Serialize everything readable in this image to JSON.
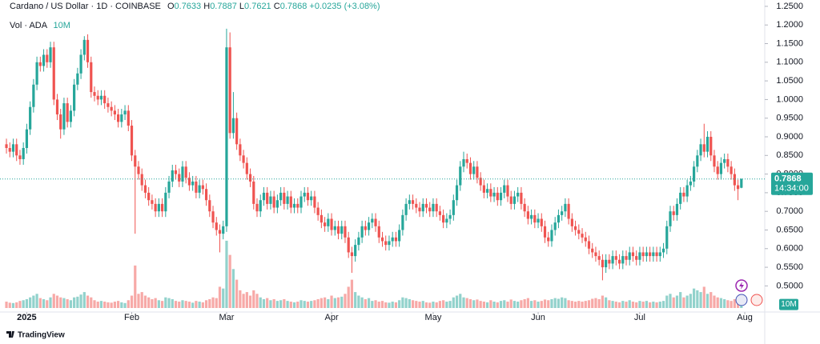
{
  "header": {
    "symbol": "Cardano / US Dollar · 1D · COINBASE",
    "ohlc_labels": [
      "O",
      "H",
      "L",
      "C"
    ],
    "change": "+0.0235",
    "change_pct": "(+3.08%)",
    "volume_title": "Vol · ADA",
    "countdown": "14:34:00",
    "branding": "TradingView"
  },
  "chart_data": {
    "type": "candlestick",
    "open": [
      0.88,
      0.87,
      0.86,
      0.88,
      0.85,
      0.84,
      0.87,
      0.92,
      0.98,
      1.04,
      1.1,
      1.09,
      1.12,
      1.1,
      1.14,
      1.0,
      0.96,
      0.92,
      0.99,
      0.94,
      0.97,
      1.04,
      1.07,
      1.12,
      1.16,
      1.1,
      1.02,
      1.01,
      1.0,
      1.01,
      0.99,
      0.98,
      0.97,
      0.96,
      0.94,
      0.96,
      0.97,
      0.93,
      0.85,
      0.82,
      0.8,
      0.77,
      0.75,
      0.73,
      0.72,
      0.7,
      0.72,
      0.7,
      0.75,
      0.78,
      0.81,
      0.8,
      0.78,
      0.82,
      0.79,
      0.77,
      0.78,
      0.75,
      0.77,
      0.76,
      0.73,
      0.7,
      0.67,
      0.65,
      0.64,
      0.66,
      1.14,
      0.91,
      0.95,
      0.88,
      0.85,
      0.83,
      0.8,
      0.78,
      0.72,
      0.7,
      0.73,
      0.75,
      0.72,
      0.74,
      0.71,
      0.73,
      0.75,
      0.72,
      0.74,
      0.71,
      0.72,
      0.71,
      0.74,
      0.75,
      0.73,
      0.74,
      0.71,
      0.69,
      0.67,
      0.66,
      0.68,
      0.65,
      0.66,
      0.64,
      0.66,
      0.63,
      0.59,
      0.58,
      0.61,
      0.63,
      0.66,
      0.65,
      0.67,
      0.68,
      0.66,
      0.63,
      0.62,
      0.61,
      0.62,
      0.63,
      0.62,
      0.65,
      0.69,
      0.72,
      0.73,
      0.72,
      0.71,
      0.7,
      0.72,
      0.71,
      0.7,
      0.72,
      0.7,
      0.69,
      0.67,
      0.68,
      0.69,
      0.73,
      0.77,
      0.82,
      0.84,
      0.83,
      0.8,
      0.82,
      0.79,
      0.77,
      0.75,
      0.76,
      0.74,
      0.75,
      0.73,
      0.75,
      0.77,
      0.74,
      0.72,
      0.74,
      0.75,
      0.72,
      0.7,
      0.68,
      0.69,
      0.67,
      0.68,
      0.66,
      0.63,
      0.62,
      0.65,
      0.67,
      0.69,
      0.7,
      0.72,
      0.68,
      0.66,
      0.65,
      0.64,
      0.63,
      0.62,
      0.6,
      0.59,
      0.58,
      0.57,
      0.55,
      0.57,
      0.56,
      0.58,
      0.57,
      0.56,
      0.58,
      0.57,
      0.59,
      0.58,
      0.57,
      0.59,
      0.58,
      0.59,
      0.58,
      0.59,
      0.58,
      0.59,
      0.6,
      0.66,
      0.7,
      0.69,
      0.72,
      0.75,
      0.74,
      0.77,
      0.78,
      0.82,
      0.85,
      0.88,
      0.86,
      0.9,
      0.85,
      0.82,
      0.8,
      0.83,
      0.84,
      0.82,
      0.8,
      0.77,
      0.7633
    ],
    "high": [
      0.895,
      0.885,
      0.895,
      0.895,
      0.865,
      0.885,
      0.935,
      0.995,
      1.055,
      1.115,
      1.115,
      1.135,
      1.135,
      1.155,
      1.155,
      1.015,
      0.975,
      1.005,
      1.005,
      0.985,
      1.055,
      1.085,
      1.135,
      1.17,
      1.175,
      1.115,
      1.035,
      1.025,
      1.025,
      1.025,
      1.005,
      0.995,
      0.985,
      0.975,
      0.975,
      0.985,
      0.985,
      0.945,
      0.865,
      0.835,
      0.815,
      0.785,
      0.765,
      0.745,
      0.735,
      0.735,
      0.735,
      0.765,
      0.795,
      0.825,
      0.825,
      0.815,
      0.835,
      0.835,
      0.805,
      0.795,
      0.795,
      0.785,
      0.785,
      0.775,
      0.745,
      0.715,
      0.685,
      0.665,
      0.675,
      1.19,
      1.18,
      1.02,
      0.965,
      0.895,
      0.865,
      0.845,
      0.815,
      0.795,
      0.735,
      0.745,
      0.765,
      0.765,
      0.755,
      0.755,
      0.745,
      0.765,
      0.765,
      0.755,
      0.755,
      0.735,
      0.735,
      0.755,
      0.765,
      0.765,
      0.755,
      0.755,
      0.725,
      0.705,
      0.685,
      0.695,
      0.695,
      0.675,
      0.675,
      0.675,
      0.675,
      0.645,
      0.605,
      0.625,
      0.645,
      0.675,
      0.675,
      0.685,
      0.695,
      0.695,
      0.675,
      0.645,
      0.635,
      0.635,
      0.645,
      0.645,
      0.665,
      0.705,
      0.735,
      0.745,
      0.745,
      0.735,
      0.725,
      0.735,
      0.735,
      0.725,
      0.735,
      0.735,
      0.715,
      0.705,
      0.695,
      0.705,
      0.745,
      0.785,
      0.835,
      0.86,
      0.855,
      0.845,
      0.835,
      0.835,
      0.805,
      0.785,
      0.775,
      0.775,
      0.765,
      0.765,
      0.765,
      0.785,
      0.785,
      0.755,
      0.755,
      0.765,
      0.765,
      0.735,
      0.715,
      0.705,
      0.705,
      0.695,
      0.695,
      0.675,
      0.645,
      0.665,
      0.685,
      0.705,
      0.715,
      0.735,
      0.735,
      0.695,
      0.675,
      0.665,
      0.655,
      0.645,
      0.635,
      0.615,
      0.605,
      0.595,
      0.585,
      0.585,
      0.585,
      0.595,
      0.595,
      0.585,
      0.595,
      0.595,
      0.605,
      0.605,
      0.595,
      0.605,
      0.605,
      0.605,
      0.605,
      0.605,
      0.605,
      0.605,
      0.615,
      0.675,
      0.715,
      0.715,
      0.735,
      0.765,
      0.765,
      0.785,
      0.795,
      0.835,
      0.865,
      0.895,
      0.935,
      0.915,
      0.915,
      0.865,
      0.835,
      0.845,
      0.855,
      0.855,
      0.835,
      0.815,
      0.785,
      0.7887
    ],
    "low": [
      0.855,
      0.845,
      0.845,
      0.835,
      0.825,
      0.825,
      0.855,
      0.905,
      0.965,
      1.025,
      1.075,
      1.075,
      1.085,
      1.085,
      0.985,
      0.945,
      0.895,
      0.905,
      0.925,
      0.925,
      0.955,
      1.025,
      1.055,
      1.105,
      1.085,
      1.005,
      0.995,
      0.985,
      0.985,
      0.975,
      0.965,
      0.955,
      0.945,
      0.925,
      0.925,
      0.945,
      0.915,
      0.835,
      0.64,
      0.785,
      0.755,
      0.735,
      0.715,
      0.705,
      0.685,
      0.685,
      0.685,
      0.685,
      0.735,
      0.765,
      0.785,
      0.765,
      0.765,
      0.775,
      0.755,
      0.755,
      0.735,
      0.735,
      0.745,
      0.715,
      0.685,
      0.655,
      0.635,
      0.59,
      0.625,
      0.645,
      0.895,
      0.895,
      0.865,
      0.835,
      0.815,
      0.785,
      0.765,
      0.705,
      0.685,
      0.685,
      0.715,
      0.705,
      0.705,
      0.695,
      0.695,
      0.715,
      0.705,
      0.705,
      0.695,
      0.695,
      0.695,
      0.695,
      0.725,
      0.715,
      0.715,
      0.695,
      0.675,
      0.655,
      0.645,
      0.645,
      0.635,
      0.635,
      0.625,
      0.625,
      0.615,
      0.575,
      0.535,
      0.565,
      0.595,
      0.615,
      0.635,
      0.635,
      0.655,
      0.645,
      0.615,
      0.605,
      0.595,
      0.595,
      0.605,
      0.605,
      0.605,
      0.635,
      0.675,
      0.705,
      0.705,
      0.695,
      0.685,
      0.685,
      0.695,
      0.685,
      0.685,
      0.685,
      0.675,
      0.655,
      0.655,
      0.665,
      0.675,
      0.715,
      0.755,
      0.805,
      0.815,
      0.785,
      0.785,
      0.775,
      0.755,
      0.735,
      0.735,
      0.725,
      0.725,
      0.715,
      0.715,
      0.735,
      0.725,
      0.705,
      0.705,
      0.725,
      0.705,
      0.685,
      0.665,
      0.665,
      0.655,
      0.655,
      0.645,
      0.615,
      0.605,
      0.605,
      0.635,
      0.655,
      0.675,
      0.685,
      0.665,
      0.645,
      0.635,
      0.625,
      0.615,
      0.605,
      0.585,
      0.575,
      0.565,
      0.555,
      0.515,
      0.535,
      0.545,
      0.545,
      0.555,
      0.545,
      0.545,
      0.555,
      0.555,
      0.565,
      0.555,
      0.555,
      0.565,
      0.565,
      0.565,
      0.565,
      0.565,
      0.565,
      0.575,
      0.585,
      0.645,
      0.675,
      0.675,
      0.705,
      0.725,
      0.725,
      0.755,
      0.765,
      0.805,
      0.835,
      0.845,
      0.845,
      0.835,
      0.805,
      0.785,
      0.785,
      0.815,
      0.805,
      0.785,
      0.755,
      0.73,
      0.7621
    ],
    "close": [
      0.87,
      0.86,
      0.88,
      0.85,
      0.84,
      0.87,
      0.92,
      0.98,
      1.04,
      1.1,
      1.09,
      1.12,
      1.1,
      1.14,
      1.0,
      0.96,
      0.92,
      0.99,
      0.94,
      0.97,
      1.04,
      1.07,
      1.12,
      1.16,
      1.1,
      1.02,
      1.01,
      1.0,
      1.01,
      0.99,
      0.98,
      0.97,
      0.96,
      0.94,
      0.96,
      0.97,
      0.93,
      0.85,
      0.82,
      0.8,
      0.77,
      0.75,
      0.73,
      0.72,
      0.7,
      0.72,
      0.7,
      0.75,
      0.78,
      0.81,
      0.8,
      0.78,
      0.82,
      0.79,
      0.77,
      0.78,
      0.75,
      0.77,
      0.76,
      0.73,
      0.7,
      0.67,
      0.65,
      0.64,
      0.66,
      1.14,
      0.91,
      0.95,
      0.88,
      0.85,
      0.83,
      0.8,
      0.78,
      0.72,
      0.7,
      0.73,
      0.75,
      0.72,
      0.74,
      0.71,
      0.73,
      0.75,
      0.72,
      0.74,
      0.71,
      0.72,
      0.71,
      0.74,
      0.75,
      0.73,
      0.74,
      0.71,
      0.69,
      0.67,
      0.66,
      0.68,
      0.65,
      0.66,
      0.64,
      0.66,
      0.63,
      0.59,
      0.58,
      0.61,
      0.63,
      0.66,
      0.65,
      0.67,
      0.68,
      0.66,
      0.63,
      0.62,
      0.61,
      0.62,
      0.63,
      0.62,
      0.65,
      0.69,
      0.72,
      0.73,
      0.72,
      0.71,
      0.7,
      0.72,
      0.71,
      0.7,
      0.72,
      0.7,
      0.69,
      0.67,
      0.68,
      0.69,
      0.73,
      0.77,
      0.82,
      0.84,
      0.83,
      0.8,
      0.82,
      0.79,
      0.77,
      0.75,
      0.76,
      0.74,
      0.75,
      0.73,
      0.75,
      0.77,
      0.74,
      0.72,
      0.74,
      0.75,
      0.72,
      0.7,
      0.68,
      0.69,
      0.67,
      0.68,
      0.66,
      0.63,
      0.62,
      0.65,
      0.67,
      0.69,
      0.7,
      0.72,
      0.68,
      0.66,
      0.65,
      0.64,
      0.63,
      0.62,
      0.6,
      0.59,
      0.58,
      0.57,
      0.55,
      0.57,
      0.56,
      0.58,
      0.57,
      0.56,
      0.58,
      0.57,
      0.59,
      0.58,
      0.57,
      0.59,
      0.58,
      0.59,
      0.58,
      0.59,
      0.58,
      0.59,
      0.6,
      0.66,
      0.7,
      0.69,
      0.72,
      0.75,
      0.74,
      0.77,
      0.78,
      0.82,
      0.85,
      0.88,
      0.86,
      0.9,
      0.85,
      0.82,
      0.8,
      0.83,
      0.84,
      0.82,
      0.8,
      0.77,
      0.76,
      0.7868
    ],
    "volume": [
      18,
      15,
      14,
      16,
      20,
      22,
      25,
      30,
      35,
      40,
      28,
      25,
      22,
      30,
      40,
      35,
      30,
      28,
      25,
      22,
      30,
      32,
      38,
      45,
      35,
      30,
      22,
      18,
      20,
      18,
      16,
      15,
      18,
      20,
      16,
      14,
      22,
      35,
      120,
      40,
      45,
      35,
      30,
      25,
      28,
      22,
      20,
      30,
      28,
      25,
      20,
      18,
      22,
      20,
      18,
      15,
      20,
      18,
      16,
      22,
      25,
      30,
      28,
      60,
      55,
      190,
      150,
      110,
      80,
      50,
      40,
      45,
      35,
      50,
      40,
      30,
      25,
      28,
      22,
      25,
      20,
      22,
      25,
      20,
      18,
      16,
      18,
      22,
      20,
      18,
      20,
      22,
      25,
      28,
      30,
      25,
      35,
      28,
      30,
      32,
      40,
      60,
      80,
      45,
      35,
      30,
      25,
      28,
      20,
      22,
      18,
      20,
      16,
      15,
      18,
      16,
      22,
      30,
      28,
      25,
      22,
      20,
      18,
      20,
      16,
      15,
      18,
      16,
      20,
      22,
      18,
      20,
      30,
      35,
      40,
      30,
      28,
      25,
      22,
      24,
      20,
      18,
      16,
      22,
      18,
      16,
      20,
      22,
      18,
      24,
      20,
      18,
      22,
      25,
      28,
      20,
      22,
      18,
      20,
      24,
      22,
      25,
      28,
      26,
      30,
      28,
      22,
      20,
      18,
      20,
      18,
      20,
      22,
      26,
      28,
      25,
      35,
      30,
      22,
      20,
      18,
      16,
      20,
      18,
      22,
      18,
      16,
      20,
      18,
      20,
      16,
      18,
      16,
      18,
      20,
      35,
      40,
      30,
      35,
      45,
      30,
      35,
      40,
      55,
      50,
      45,
      60,
      40,
      45,
      35,
      30,
      28,
      25,
      22,
      20,
      25,
      28,
      10
    ],
    "volume_label": "10M",
    "up_color": "#26a69a",
    "down_color": "#ef5350",
    "xlim": [
      -1.9,
      223.9
    ],
    "ylim": [
      0.43,
      1.267
    ],
    "volume_ylim": [
      0,
      870
    ],
    "yticks": [
      {
        "value": 0.5,
        "label": "0.5000"
      },
      {
        "value": 0.55,
        "label": "0.5500"
      },
      {
        "value": 0.6,
        "label": "0.6000"
      },
      {
        "value": 0.65,
        "label": "0.6500"
      },
      {
        "value": 0.7,
        "label": "0.7000"
      },
      {
        "value": 0.75,
        "label": "0.7500"
      },
      {
        "value": 0.8,
        "label": "0.8000"
      },
      {
        "value": 0.85,
        "label": "0.8500"
      },
      {
        "value": 0.9,
        "label": "0.9000"
      },
      {
        "value": 0.95,
        "label": "0.9500"
      },
      {
        "value": 1.0,
        "label": "1.0000"
      },
      {
        "value": 1.05,
        "label": "1.0500"
      },
      {
        "value": 1.1,
        "label": "1.1000"
      },
      {
        "value": 1.15,
        "label": "1.1500"
      },
      {
        "value": 1.2,
        "label": "1.2000"
      },
      {
        "value": 1.25,
        "label": "1.2500"
      }
    ],
    "xticks": [
      {
        "value": 6,
        "label": "2025"
      },
      {
        "value": 37,
        "label": "Feb"
      },
      {
        "value": 65,
        "label": "Mar"
      },
      {
        "value": 96,
        "label": "Apr"
      },
      {
        "value": 126,
        "label": "May"
      },
      {
        "value": 157,
        "label": "Jun"
      },
      {
        "value": 187,
        "label": "Jul"
      },
      {
        "value": 218,
        "label": "Aug"
      }
    ]
  }
}
